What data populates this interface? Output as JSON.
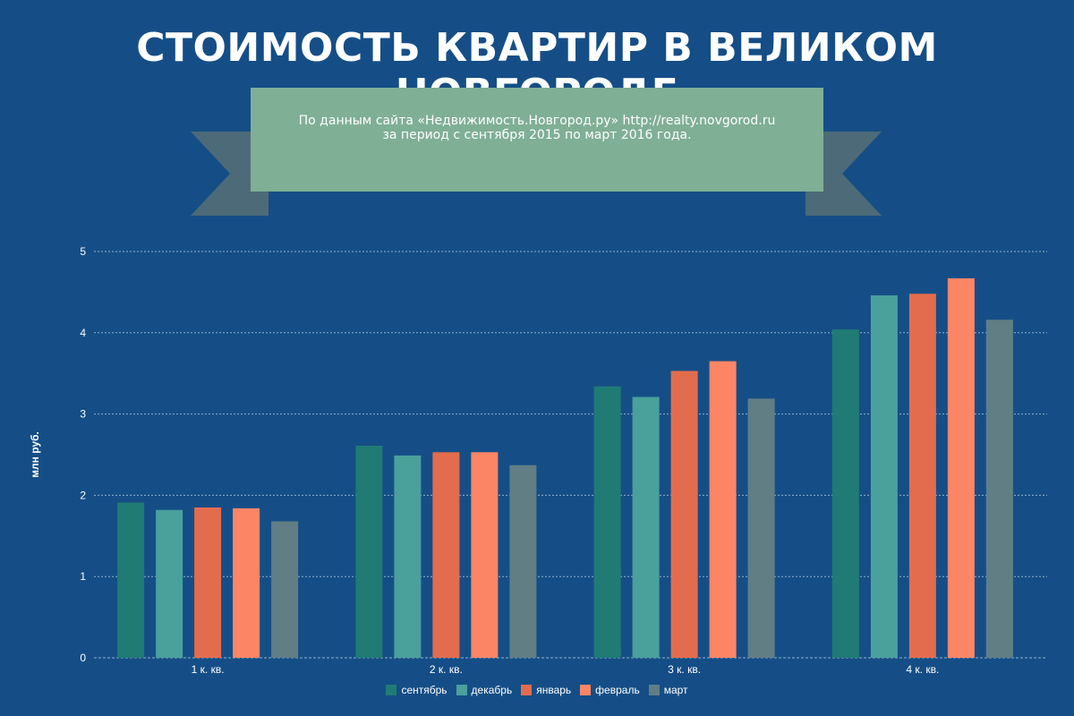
{
  "title": "СТОИМОСТЬ КВАРТИР В ВЕЛИКОМ НОВГОРОДЕ",
  "banner": {
    "line1": "По данным сайта «Недвижимость.Новгород.ру» http://realty.novgorod.ru",
    "line2": "за период с сентября 2015 по март 2016 года."
  },
  "chart_data": {
    "type": "bar",
    "ylabel": "млн руб.",
    "xlabel": "",
    "ylim": [
      0,
      5
    ],
    "yticks": [
      0,
      1,
      2,
      3,
      4,
      5
    ],
    "grid": true,
    "legend_position": "bottom",
    "categories": [
      "1 к. кв.",
      "2 к. кв.",
      "3 к. кв.",
      "4 к. кв."
    ],
    "series": [
      {
        "name": "сентябрь",
        "color": "#207b74",
        "values": [
          1.91,
          2.61,
          3.34,
          4.04
        ]
      },
      {
        "name": "декабрь",
        "color": "#4aa09b",
        "values": [
          1.82,
          2.49,
          3.21,
          4.46
        ]
      },
      {
        "name": "январь",
        "color": "#e46c4e",
        "values": [
          1.85,
          2.53,
          3.53,
          4.48
        ]
      },
      {
        "name": "февраль",
        "color": "#fc8566",
        "values": [
          1.84,
          2.53,
          3.65,
          4.67
        ]
      },
      {
        "name": "март",
        "color": "#617e85",
        "values": [
          1.68,
          2.37,
          3.19,
          4.16
        ]
      }
    ]
  }
}
